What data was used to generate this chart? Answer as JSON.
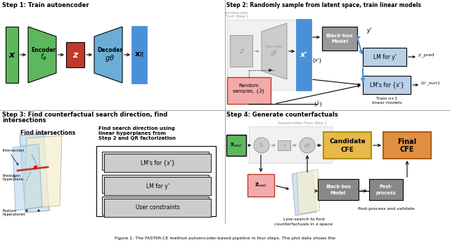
{
  "step1_title": "Step 1: Train autoencoder",
  "step2_title": "Step 2: Randomly sample from latent space, train linear models",
  "step3_title": "Step 3: Find counterfactual search direction, find",
  "step3_title2": "intersections",
  "step4_title": "Step 4: Generate counterfactuals",
  "green": "#5db85d",
  "blue": "#6aaed6",
  "blue2": "#4a90d9",
  "red": "#c0392b",
  "pink": "#f4aaaa",
  "gray": "#999999",
  "lgray": "#cccccc",
  "dgray": "#777777",
  "gold": "#e8b84b",
  "orange": "#e09040",
  "lblue": "#add8e6",
  "beige": "#f5f0d0",
  "white": "#ffffff",
  "black": "#000000",
  "divider": "#aaaaaa"
}
